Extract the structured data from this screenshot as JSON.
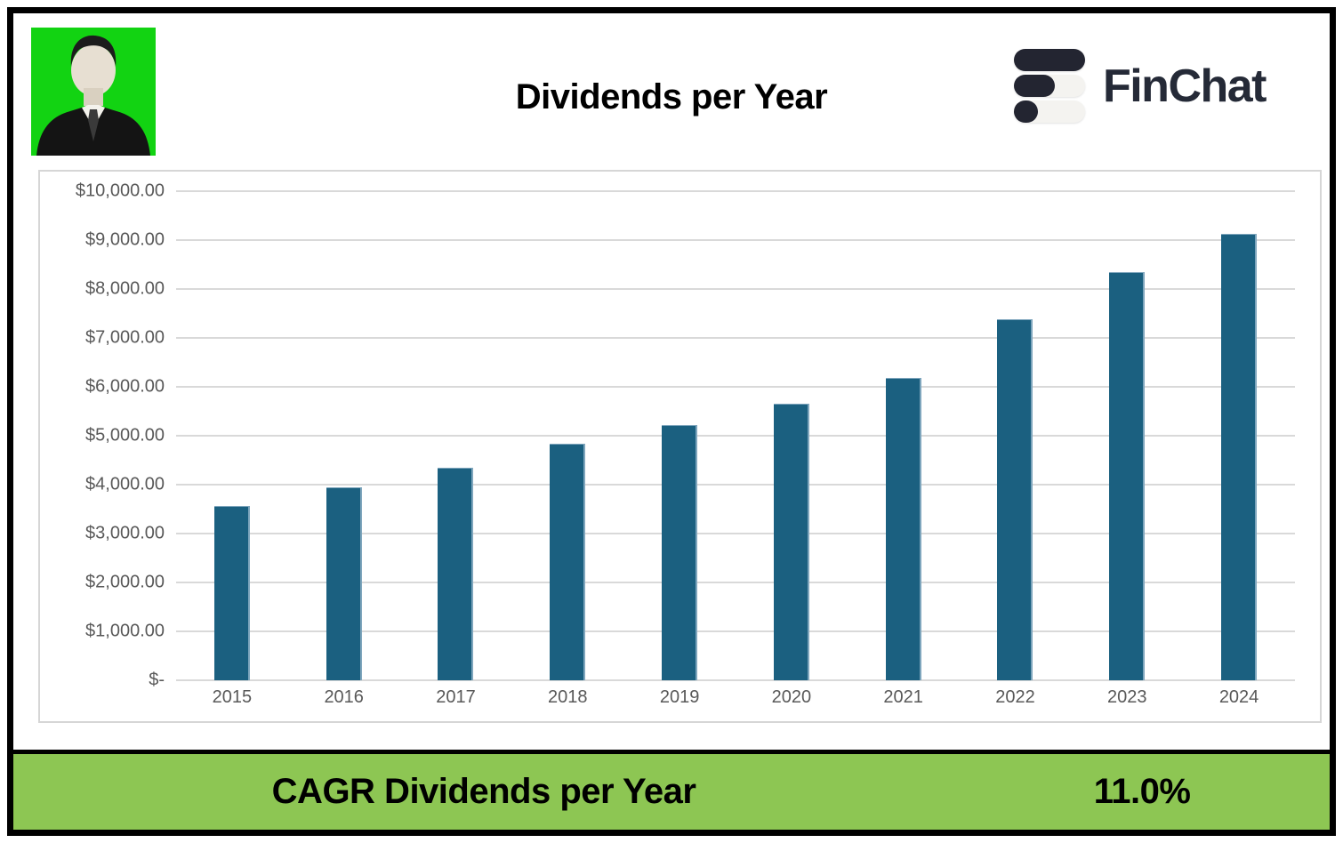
{
  "header": {
    "title": "Dividends per Year",
    "avatar": {
      "name": "portrait-avatar",
      "bg": "#12D312"
    },
    "logo": {
      "text": "FinChat",
      "icon": "finchat-logo-icon"
    }
  },
  "chart_data": {
    "type": "bar",
    "title": "Dividends per Year",
    "categories": [
      "2015",
      "2016",
      "2017",
      "2018",
      "2019",
      "2020",
      "2021",
      "2022",
      "2023",
      "2024"
    ],
    "values": [
      3570,
      3940,
      4340,
      4840,
      5220,
      5660,
      6190,
      7380,
      8340,
      9130
    ],
    "xlabel": "",
    "ylabel": "",
    "ylim": [
      0,
      10000
    ],
    "grid": "horizontal",
    "legend": "none",
    "bar_color": "#1B6080",
    "yticks": [
      {
        "value": 10000,
        "label": "$10,000.00"
      },
      {
        "value": 9000,
        "label": "$9,000.00"
      },
      {
        "value": 8000,
        "label": "$8,000.00"
      },
      {
        "value": 7000,
        "label": "$7,000.00"
      },
      {
        "value": 6000,
        "label": "$6,000.00"
      },
      {
        "value": 5000,
        "label": "$5,000.00"
      },
      {
        "value": 4000,
        "label": "$4,000.00"
      },
      {
        "value": 3000,
        "label": "$3,000.00"
      },
      {
        "value": 2000,
        "label": "$2,000.00"
      },
      {
        "value": 1000,
        "label": "$1,000.00"
      },
      {
        "value": 0,
        "label": "$-"
      }
    ]
  },
  "footer": {
    "label": "CAGR Dividends per Year",
    "value": "11.0%",
    "bg": "#8DC653"
  },
  "colors": {
    "bar": "#1B6080",
    "band_green": "#8DC653",
    "avatar_green": "#12D312",
    "logo_dark": "#232531",
    "gridline": "#D9D9D9",
    "axis_text": "#595959"
  }
}
